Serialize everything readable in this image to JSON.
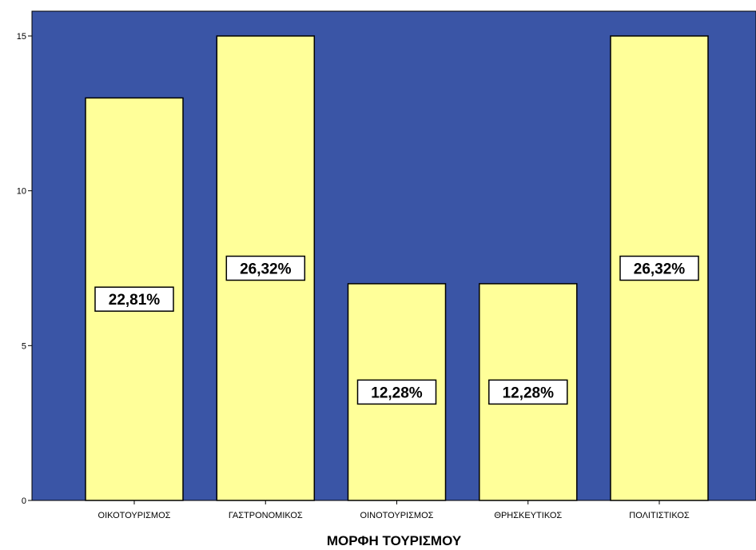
{
  "chart_data": {
    "type": "bar",
    "categories": [
      "ΟΙΚΟΤΟΥΡΙΣΜΟΣ",
      "ΓΑΣΤΡΟΝΟΜΙΚΟΣ",
      "ΟΙΝΟΤΟΥΡΙΣΜΟΣ",
      "ΘΡΗΣΚΕΥΤΙΚΟΣ",
      "ΠΟΛΙΤΙΣΤΙΚΟΣ"
    ],
    "values": [
      13,
      15,
      7,
      7,
      15
    ],
    "data_labels": [
      "22,81%",
      "26,32%",
      "12,28%",
      "12,28%",
      "26,32%"
    ],
    "title": "",
    "xlabel": "ΜΟΡΦΗ ΤΟΥΡΙΣΜΟΥ",
    "ylabel": "",
    "ylim": [
      0,
      15.8
    ],
    "yticks": [
      0,
      5,
      10,
      15
    ],
    "grid": false,
    "colors": {
      "plot_background": "#3a55a6",
      "bar_fill": "#ffff99",
      "bar_stroke": "#000000"
    }
  }
}
